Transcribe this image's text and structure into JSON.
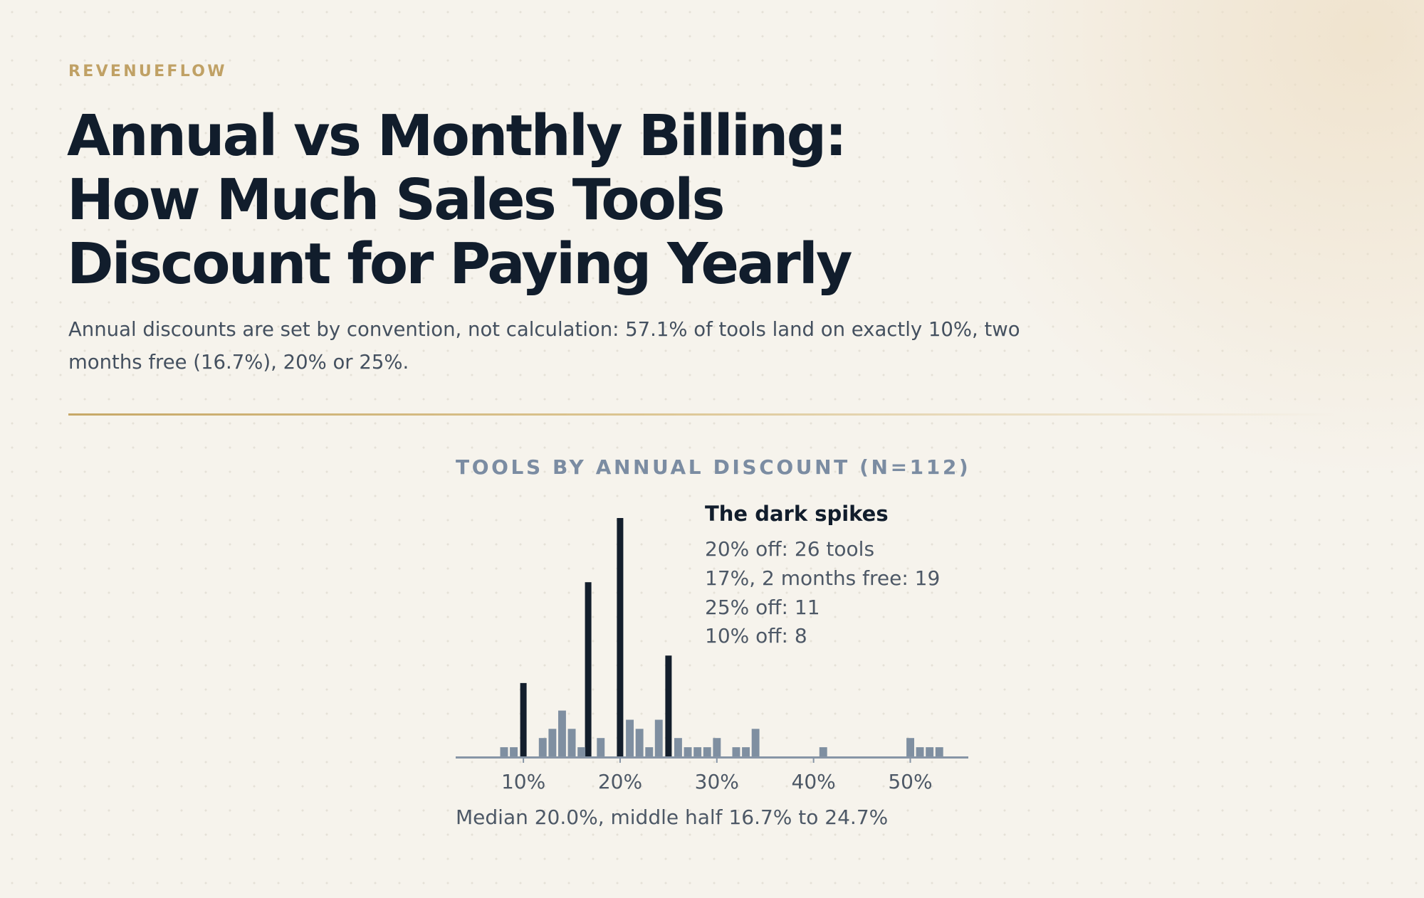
{
  "brand": "REVENUEFLOW",
  "headline": {
    "line1": "Annual vs Monthly Billing:",
    "line2": "How Much Sales Tools",
    "line3": "Discount for Paying Yearly"
  },
  "subtitle": "Annual discounts are set by convention, not calculation: 57.1% of tools land on exactly 10%, two months free (16.7%), 20% or 25%.",
  "chart_title": "TOOLS BY ANNUAL DISCOUNT (N=112)",
  "annotation": {
    "title": "The dark spikes",
    "lines": [
      "20% off: 26 tools",
      "17%, 2 months free: 19",
      "25% off: 11",
      "10% off: 8"
    ]
  },
  "note": "Median 20.0%, middle half 16.7% to 24.7%",
  "colors": {
    "spike": "#131e2c",
    "bar": "#7f8fa1",
    "axis": "#8795a6",
    "accent": "#c0a165"
  },
  "chart_data": {
    "type": "bar",
    "title": "TOOLS BY ANNUAL DISCOUNT (N=112)",
    "xlabel": "",
    "ylabel": "",
    "xlim": [
      3,
      56
    ],
    "ylim": [
      0,
      26
    ],
    "x_ticks": [
      10,
      20,
      30,
      40,
      50
    ],
    "x_tick_labels": [
      "10%",
      "20%",
      "30%",
      "40%",
      "50%"
    ],
    "grid": false,
    "series": [
      {
        "role": "spikes",
        "color": "#131e2c",
        "x": [
          10,
          16.7,
          20,
          25
        ],
        "values": [
          8,
          19,
          26,
          11
        ]
      },
      {
        "role": "other",
        "color": "#7f8fa1",
        "x": [
          8,
          9,
          12,
          13,
          14,
          15,
          16,
          18,
          21,
          22,
          23,
          24,
          26,
          27,
          28,
          29,
          30,
          32,
          33,
          34,
          41,
          50,
          51,
          52,
          53
        ],
        "values": [
          1,
          1,
          2,
          3,
          5,
          3,
          1,
          2,
          4,
          3,
          1,
          4,
          2,
          1,
          1,
          1,
          2,
          1,
          1,
          3,
          1,
          2,
          1,
          1,
          1
        ]
      }
    ]
  }
}
